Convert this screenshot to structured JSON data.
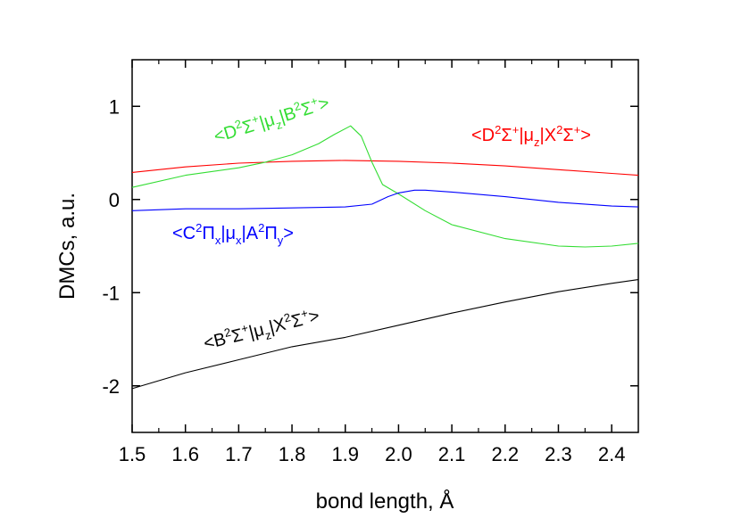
{
  "chart_data": {
    "type": "line",
    "xlabel": "bond length, Å",
    "ylabel": "DMCs, a.u.",
    "xlim": [
      1.5,
      2.45
    ],
    "ylim": [
      -2.5,
      1.5
    ],
    "x_ticks": [
      1.5,
      1.6,
      1.7,
      1.8,
      1.9,
      2.0,
      2.1,
      2.2,
      2.3,
      2.4
    ],
    "x_tick_labels": [
      "1.5",
      "1.6",
      "1.7",
      "1.8",
      "1.9",
      "2.0",
      "2.1",
      "2.2",
      "2.3",
      "2.4"
    ],
    "y_ticks": [
      -2,
      -1,
      0,
      1
    ],
    "y_tick_labels": [
      "-2",
      "-1",
      "0",
      "1"
    ],
    "grid": false,
    "series": [
      {
        "label_parts": [
          "<D",
          "2",
          "Σ",
          "+",
          "|μ",
          "z",
          "|X",
          "2",
          "Σ",
          "+",
          ">"
        ],
        "color": "#ff0000",
        "x": [
          1.5,
          1.6,
          1.7,
          1.8,
          1.9,
          2.0,
          2.1,
          2.2,
          2.3,
          2.4,
          2.45
        ],
        "y": [
          0.29,
          0.35,
          0.39,
          0.41,
          0.42,
          0.41,
          0.39,
          0.36,
          0.32,
          0.28,
          0.26
        ]
      },
      {
        "label_parts": [
          "<D",
          "2",
          "Σ",
          "+",
          "|μ",
          "z",
          "|B",
          "2",
          "Σ",
          "+",
          ">"
        ],
        "color": "#33dd33",
        "x": [
          1.5,
          1.6,
          1.7,
          1.75,
          1.8,
          1.85,
          1.88,
          1.91,
          1.93,
          1.95,
          1.97,
          2.0,
          2.05,
          2.1,
          2.2,
          2.3,
          2.35,
          2.4,
          2.45
        ],
        "y": [
          0.13,
          0.26,
          0.34,
          0.4,
          0.48,
          0.6,
          0.7,
          0.79,
          0.68,
          0.4,
          0.16,
          0.06,
          -0.12,
          -0.27,
          -0.42,
          -0.5,
          -0.51,
          -0.5,
          -0.47
        ]
      },
      {
        "label_parts": [
          "<C",
          "2",
          "Π",
          "x",
          "|μ",
          "x",
          "|A",
          "2",
          "Π",
          "y",
          ">"
        ],
        "color": "#0000ff",
        "x": [
          1.5,
          1.6,
          1.7,
          1.8,
          1.9,
          1.95,
          1.98,
          2.0,
          2.03,
          2.05,
          2.1,
          2.2,
          2.3,
          2.4,
          2.45
        ],
        "y": [
          -0.12,
          -0.1,
          -0.1,
          -0.09,
          -0.08,
          -0.05,
          0.03,
          0.07,
          0.1,
          0.1,
          0.08,
          0.03,
          -0.03,
          -0.07,
          -0.08
        ]
      },
      {
        "label_parts": [
          "<B",
          "2",
          "Σ",
          "+",
          "|μ",
          "z",
          "|X",
          "2",
          "Σ",
          "+",
          ">"
        ],
        "color": "#000000",
        "x": [
          1.5,
          1.6,
          1.7,
          1.8,
          1.9,
          2.0,
          2.1,
          2.2,
          2.3,
          2.4,
          2.45
        ],
        "y": [
          -2.03,
          -1.86,
          -1.72,
          -1.58,
          -1.48,
          -1.35,
          -1.22,
          -1.1,
          -0.99,
          -0.9,
          -0.86
        ]
      }
    ]
  }
}
